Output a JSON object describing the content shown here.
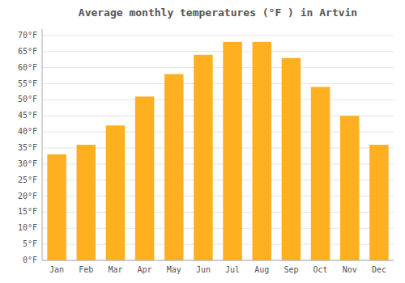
{
  "chart_data": {
    "type": "bar",
    "title": "Average monthly temperatures (°F ) in Artvin",
    "categories": [
      "Jan",
      "Feb",
      "Mar",
      "Apr",
      "May",
      "Jun",
      "Jul",
      "Aug",
      "Sep",
      "Oct",
      "Nov",
      "Dec"
    ],
    "values": [
      33,
      36,
      42,
      51,
      58,
      64,
      68,
      68,
      63,
      54,
      45,
      36
    ],
    "color": "#FFB020",
    "ylim": [
      0,
      72
    ],
    "yticks": [
      {
        "value": 0,
        "label": "0°F"
      },
      {
        "value": 5,
        "label": "5°F"
      },
      {
        "value": 10,
        "label": "10°F"
      },
      {
        "value": 15,
        "label": "15°F"
      },
      {
        "value": 20,
        "label": "20°F"
      },
      {
        "value": 25,
        "label": "25°F"
      },
      {
        "value": 30,
        "label": "30°F"
      },
      {
        "value": 35,
        "label": "35°F"
      },
      {
        "value": 40,
        "label": "40°F"
      },
      {
        "value": 45,
        "label": "45°F"
      },
      {
        "value": 50,
        "label": "50°F"
      },
      {
        "value": 55,
        "label": "55°F"
      },
      {
        "value": 60,
        "label": "60°F"
      },
      {
        "value": 65,
        "label": "65°F"
      },
      {
        "value": 70,
        "label": "70°F"
      }
    ],
    "grid": true
  }
}
